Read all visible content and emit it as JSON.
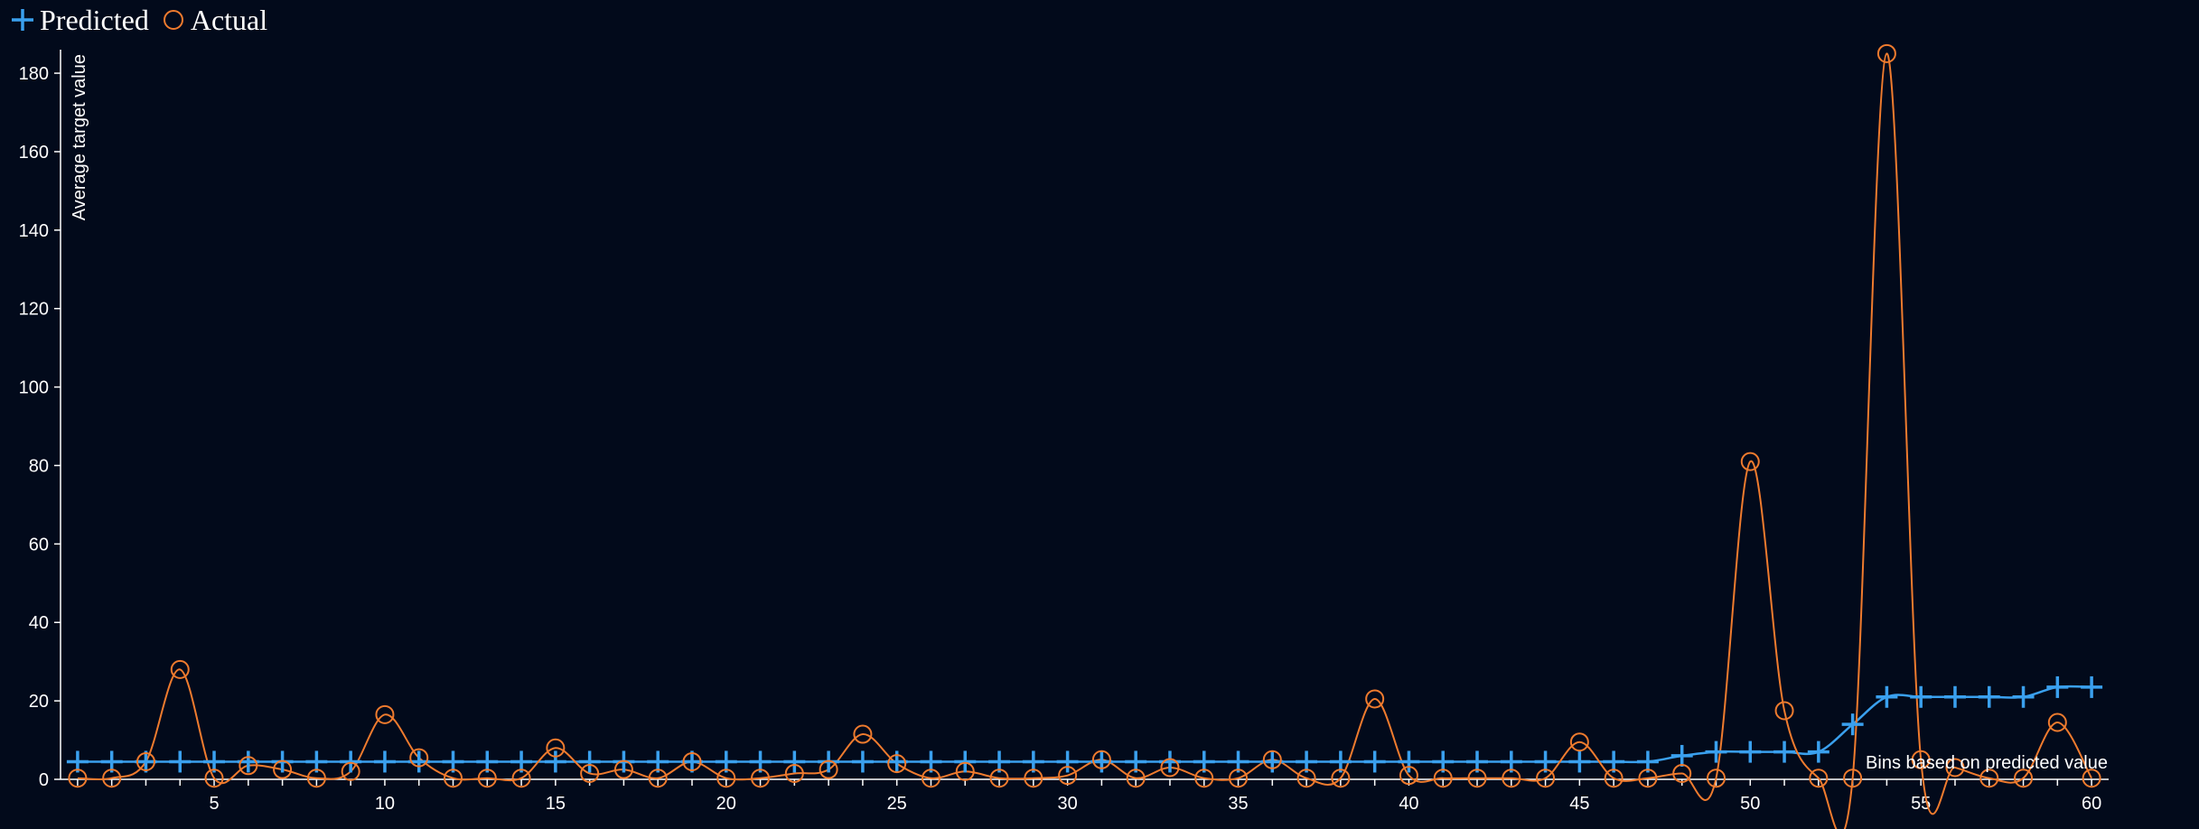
{
  "colors": {
    "background": "#020a1b",
    "predicted": "#3aa0ee",
    "actual": "#ef7b2e",
    "axis": "#ffffff"
  },
  "legend": {
    "predicted_label": "Predicted",
    "actual_label": "Actual",
    "predicted_icon": "plus-icon",
    "actual_icon": "circle-icon"
  },
  "chart_data": {
    "type": "line",
    "xlabel": "Bins based on predicted value",
    "ylabel": "Average target value",
    "xlim": [
      0.5,
      60.5
    ],
    "ylim": [
      0,
      186
    ],
    "xticks": [
      5,
      10,
      15,
      20,
      25,
      30,
      35,
      40,
      45,
      50,
      55,
      60
    ],
    "yticks": [
      0,
      20,
      40,
      60,
      80,
      100,
      120,
      140,
      160,
      180
    ],
    "x": [
      1,
      2,
      3,
      4,
      5,
      6,
      7,
      8,
      9,
      10,
      11,
      12,
      13,
      14,
      15,
      16,
      17,
      18,
      19,
      20,
      21,
      22,
      23,
      24,
      25,
      26,
      27,
      28,
      29,
      30,
      31,
      32,
      33,
      34,
      35,
      36,
      37,
      38,
      39,
      40,
      41,
      42,
      43,
      44,
      45,
      46,
      47,
      48,
      49,
      50,
      51,
      52,
      53,
      54,
      55,
      56,
      57,
      58,
      59,
      60
    ],
    "series": [
      {
        "name": "Predicted",
        "marker": "plus",
        "values": [
          4.5,
          4.5,
          4.5,
          4.5,
          4.5,
          4.5,
          4.5,
          4.5,
          4.5,
          4.5,
          4.5,
          4.5,
          4.5,
          4.5,
          4.5,
          4.5,
          4.5,
          4.5,
          4.5,
          4.5,
          4.5,
          4.5,
          4.5,
          4.5,
          4.5,
          4.5,
          4.5,
          4.5,
          4.5,
          4.5,
          4.5,
          4.5,
          4.5,
          4.5,
          4.5,
          4.5,
          4.5,
          4.5,
          4.5,
          4.5,
          4.5,
          4.5,
          4.5,
          4.5,
          4.5,
          4.5,
          4.5,
          6,
          7,
          7,
          7,
          7,
          14,
          21,
          21,
          21,
          21,
          21,
          23.5,
          23.5
        ]
      },
      {
        "name": "Actual",
        "marker": "circle",
        "values": [
          0.3,
          0.3,
          4.5,
          28,
          0.3,
          3.5,
          2.5,
          0.3,
          2,
          16.5,
          5.5,
          0.3,
          0.3,
          0.3,
          8,
          1.5,
          2.5,
          0.3,
          4.5,
          0.3,
          0.3,
          1.5,
          2.5,
          11.5,
          4,
          0.3,
          2,
          0.3,
          0.3,
          1,
          5,
          0.3,
          3,
          0.3,
          0.3,
          5,
          0.3,
          0.3,
          20.5,
          1,
          0.3,
          0.3,
          0.3,
          0.3,
          9.5,
          0.3,
          0.3,
          1.5,
          0.3,
          81,
          17.5,
          0.3,
          0.3,
          185,
          5,
          3,
          0.3,
          0.3,
          14.5,
          0.3
        ]
      }
    ]
  }
}
